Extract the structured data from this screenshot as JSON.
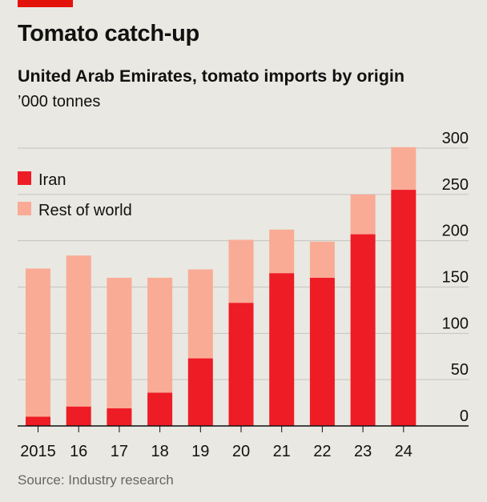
{
  "header": {
    "title": "Tomato catch-up",
    "subtitle": "United Arab Emirates, tomato imports by origin",
    "unit": "’000 tonnes"
  },
  "footer": {
    "source": "Source: Industry research"
  },
  "colors": {
    "iran": "#ee1c25",
    "rest": "#f9ab96",
    "accent": "#e3120b",
    "background": "#e9e8e2",
    "grid": "#c4c3bd"
  },
  "chart_data": {
    "type": "bar",
    "stacked": true,
    "categories": [
      "2015",
      "16",
      "17",
      "18",
      "19",
      "20",
      "21",
      "22",
      "23",
      "24"
    ],
    "series": [
      {
        "name": "Iran",
        "values": [
          10,
          21,
          19,
          36,
          73,
          133,
          165,
          160,
          207,
          255
        ]
      },
      {
        "name": "Rest of world",
        "values": [
          160,
          163,
          141,
          124,
          96,
          68,
          47,
          39,
          43,
          46
        ]
      }
    ],
    "ylim": [
      0,
      300
    ],
    "yticks": [
      0,
      50,
      100,
      150,
      200,
      250,
      300
    ],
    "axis_side": "right",
    "legend_position": "top-left",
    "grid": true
  }
}
